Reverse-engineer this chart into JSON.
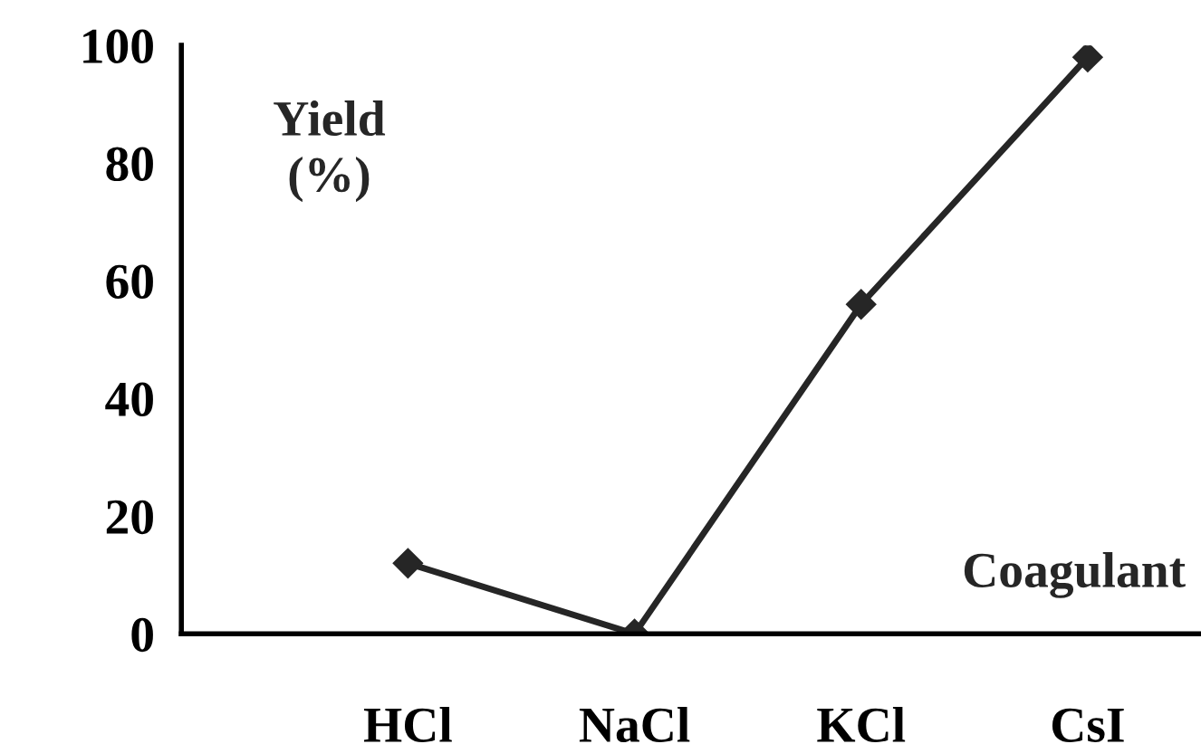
{
  "chart_data": {
    "type": "line",
    "xlabel": "Coagulant",
    "ylabel": "Yield\n(%)",
    "categories": [
      "HCl",
      "NaCl",
      "KCl",
      "CsI"
    ],
    "series": [
      {
        "color": "#262626",
        "values": [
          12,
          0,
          56,
          98
        ]
      }
    ],
    "ylim": [
      0,
      100
    ],
    "yticks": [
      0,
      20,
      40,
      60,
      80,
      100
    ],
    "marker": "diamond",
    "line_style": "solid",
    "grid": false,
    "legend": false
  }
}
